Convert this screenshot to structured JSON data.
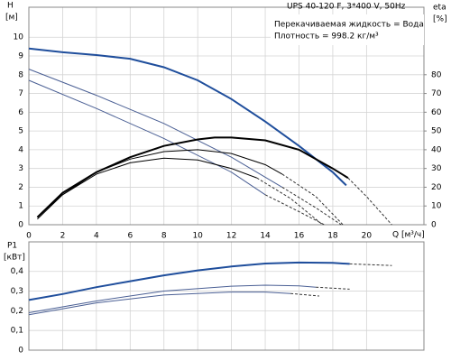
{
  "chart_data": [
    {
      "type": "line",
      "title": "UPS 40-120 F, 3*400 V, 50Hz",
      "info": [
        "Перекачиваемая жидкость = Вода",
        "Плотность = 998.2 кг/м³"
      ],
      "y_label": "H",
      "y_unit": "[м]",
      "y2_label": "eta",
      "y2_unit": "[%]",
      "x_label": "Q [м³/ч]",
      "xlim": [
        0,
        23.4
      ],
      "xticks": [
        0,
        2,
        4,
        6,
        8,
        10,
        12,
        14,
        16,
        18,
        20
      ],
      "ylim": [
        0,
        11.6
      ],
      "yticks": [
        0,
        1,
        2,
        3,
        4,
        5,
        6,
        7,
        8,
        9,
        10
      ],
      "y2lim": [
        0,
        116
      ],
      "y2ticks": [
        0,
        10,
        20,
        30,
        40,
        50,
        60,
        70,
        80
      ],
      "grid": true,
      "series": [
        {
          "color": "#1f4e9c",
          "width": 2,
          "x": [
            0,
            2,
            4,
            6,
            8,
            10,
            12,
            14,
            16,
            18,
            18.8
          ],
          "values": [
            9.4,
            9.2,
            9.05,
            8.85,
            8.4,
            7.7,
            6.7,
            5.5,
            4.2,
            2.8,
            2.1
          ]
        },
        {
          "color": "#4a5f94",
          "width": 1,
          "x": [
            0,
            4,
            8,
            12,
            15
          ],
          "values": [
            8.3,
            6.9,
            5.4,
            3.6,
            2.0
          ]
        },
        {
          "color": "#333333",
          "width": 1,
          "dash": true,
          "x": [
            15,
            17,
            18.5
          ],
          "values": [
            2.0,
            0.9,
            0
          ]
        },
        {
          "color": "#4a5f94",
          "width": 1,
          "x": [
            0,
            4,
            8,
            12,
            14
          ],
          "values": [
            7.7,
            6.2,
            4.6,
            2.8,
            1.6
          ]
        },
        {
          "color": "#333333",
          "width": 1,
          "dash": true,
          "x": [
            14,
            16,
            17.5
          ],
          "values": [
            1.6,
            0.7,
            0
          ]
        },
        {
          "color": "#000000",
          "width": 2,
          "axis": "y2",
          "x": [
            0.5,
            2,
            4,
            6,
            8,
            10,
            11,
            12,
            14,
            16,
            18,
            18.9
          ],
          "values": [
            4,
            17,
            28,
            36,
            42,
            45.5,
            46.5,
            46.5,
            45,
            40,
            30,
            25
          ]
        },
        {
          "color": "#333333",
          "width": 1,
          "dash": true,
          "axis": "y2",
          "x": [
            18.9,
            20,
            21.5
          ],
          "values": [
            25,
            15,
            0
          ]
        },
        {
          "color": "#000000",
          "width": 1,
          "axis": "y2",
          "x": [
            0.5,
            2,
            4,
            6,
            8,
            10,
            12,
            14,
            15
          ],
          "values": [
            4,
            16,
            28,
            35,
            39,
            40,
            38,
            32,
            27
          ]
        },
        {
          "color": "#333333",
          "width": 1,
          "dash": true,
          "axis": "y2",
          "x": [
            15,
            17,
            18.6
          ],
          "values": [
            27,
            15,
            0
          ]
        },
        {
          "color": "#000000",
          "width": 1,
          "axis": "y2",
          "x": [
            0.5,
            2,
            4,
            6,
            8,
            10,
            12,
            13.5
          ],
          "values": [
            3,
            16,
            27,
            33,
            35.5,
            34.5,
            30,
            25
          ]
        },
        {
          "color": "#333333",
          "width": 1,
          "dash": true,
          "axis": "y2",
          "x": [
            13.5,
            15.5,
            17.4
          ],
          "values": [
            25,
            14,
            0
          ]
        }
      ]
    },
    {
      "type": "line",
      "y_label": "P1",
      "y_unit": "[кВт]",
      "xlim": [
        0,
        23.4
      ],
      "xticks": [
        0,
        2,
        4,
        6,
        8,
        10,
        12,
        14,
        16,
        18,
        20
      ],
      "ylim": [
        0,
        0.55
      ],
      "yticks": [
        0,
        {
          "value": 0.1,
          "label": "0,1"
        },
        {
          "value": 0.2,
          "label": "0,2"
        },
        {
          "value": 0.3,
          "label": "0,3"
        },
        {
          "value": 0.4,
          "label": "0,4"
        }
      ],
      "grid": true,
      "series": [
        {
          "color": "#1f4e9c",
          "width": 2,
          "x": [
            0,
            2,
            4,
            6,
            8,
            10,
            12,
            14,
            16,
            18,
            19
          ],
          "values": [
            0.255,
            0.285,
            0.32,
            0.35,
            0.38,
            0.405,
            0.425,
            0.44,
            0.445,
            0.443,
            0.438
          ]
        },
        {
          "color": "#333333",
          "width": 1,
          "dash": true,
          "x": [
            19,
            21.5
          ],
          "values": [
            0.438,
            0.43
          ]
        },
        {
          "color": "#4a5f94",
          "width": 1,
          "x": [
            0,
            4,
            8,
            12,
            14,
            16,
            17
          ],
          "values": [
            0.19,
            0.25,
            0.3,
            0.325,
            0.33,
            0.327,
            0.32
          ]
        },
        {
          "color": "#333333",
          "width": 1,
          "dash": true,
          "x": [
            17,
            19
          ],
          "values": [
            0.32,
            0.31
          ]
        },
        {
          "color": "#4a5f94",
          "width": 1,
          "x": [
            0,
            4,
            8,
            12,
            14,
            15.5
          ],
          "values": [
            0.18,
            0.24,
            0.28,
            0.295,
            0.295,
            0.288
          ]
        },
        {
          "color": "#333333",
          "width": 1,
          "dash": true,
          "x": [
            15.5,
            17.2
          ],
          "values": [
            0.288,
            0.275
          ]
        }
      ]
    }
  ]
}
